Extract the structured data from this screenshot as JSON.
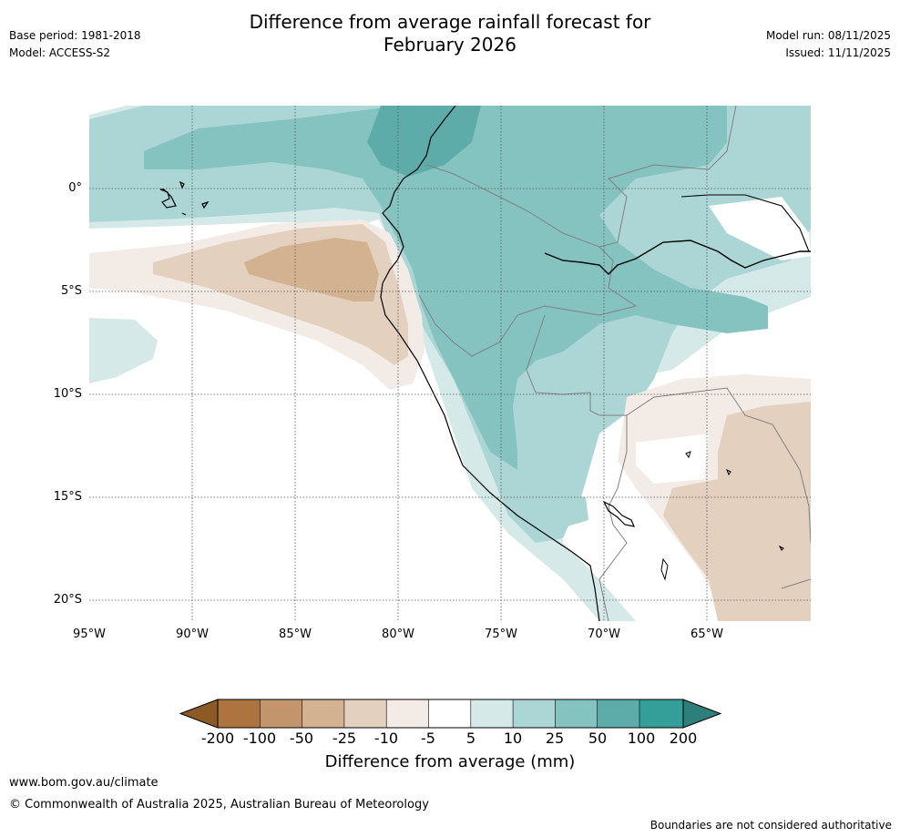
{
  "header": {
    "base_period": "Base period: 1981-2018",
    "model": "Model: ACCESS-S2",
    "title_line1": "Difference from average rainfall forecast for",
    "title_line2": "February 2026",
    "model_run": "Model run: 08/11/2025",
    "issued": "Issued: 11/11/2025"
  },
  "map": {
    "lat_labels": [
      "0°",
      "5°S",
      "10°S",
      "15°S",
      "20°S"
    ],
    "lon_labels": [
      "95°W",
      "90°W",
      "85°W",
      "80°W",
      "75°W",
      "70°W",
      "65°W"
    ]
  },
  "colorbar": {
    "ticks": [
      "-200",
      "-100",
      "-50",
      "-25",
      "-10",
      "-5",
      "5",
      "10",
      "25",
      "50",
      "100",
      "200"
    ],
    "colors": [
      "#8c5a25",
      "#ad7440",
      "#c2956d",
      "#d3b292",
      "#e4d0bf",
      "#f3ebe6",
      "#ffffff",
      "#d5e9e8",
      "#acd6d5",
      "#85c3c1",
      "#5eacaa",
      "#349e99",
      "#2d7f7c"
    ],
    "label": "Difference from average (mm)"
  },
  "footer": {
    "url": "www.bom.gov.au/climate",
    "copyright": "© Commonwealth of Australia 2025, Australian Bureau of Meteorology",
    "disclaimer": "Boundaries are not considered authoritative"
  }
}
